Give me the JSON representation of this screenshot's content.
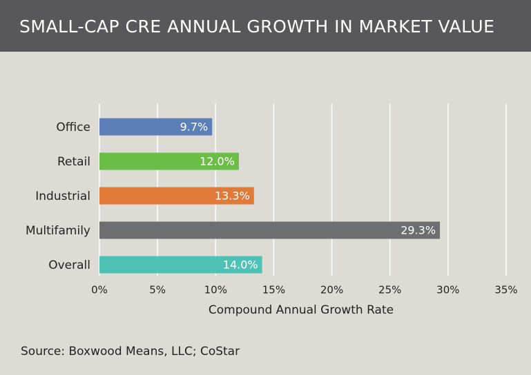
{
  "chart_data": {
    "type": "hbar",
    "title": "SMALL-CAP CRE ANNUAL GROWTH IN MARKET VALUE",
    "categories": [
      "Office",
      "Retail",
      "Industrial",
      "Multifamily",
      "Overall"
    ],
    "values": [
      9.7,
      12.0,
      13.3,
      29.3,
      14.0
    ],
    "value_labels": [
      "9.7%",
      "12.0%",
      "13.3%",
      "29.3%",
      "14.0%"
    ],
    "colors": [
      "#5b7fb6",
      "#6bbd45",
      "#e07a38",
      "#6d6e70",
      "#4fc2b6"
    ],
    "xlim": [
      0,
      35
    ],
    "xticks": [
      {
        "value": 0,
        "label": "0%"
      },
      {
        "value": 5,
        "label": "5%"
      },
      {
        "value": 10,
        "label": "10%"
      },
      {
        "value": 15,
        "label": "15%"
      },
      {
        "value": 20,
        "label": "20%"
      },
      {
        "value": 25,
        "label": "25%"
      },
      {
        "value": 30,
        "label": "30%"
      },
      {
        "value": 35,
        "label": "35%"
      }
    ],
    "x_label": "Compound Annual Growth Rate",
    "grid": true,
    "source": "Source: Boxwood Means, LLC; CoStar"
  }
}
